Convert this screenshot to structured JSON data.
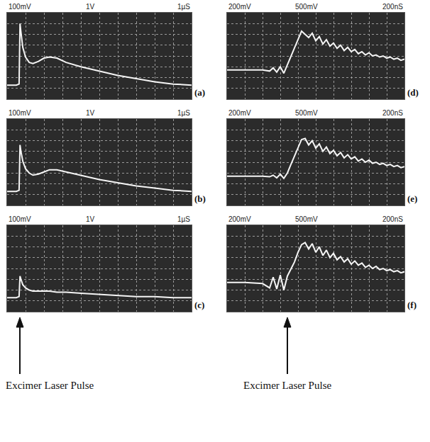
{
  "chart_data": [
    {
      "type": "line",
      "title": "(a)",
      "annotations": [
        "100mV",
        "1V",
        "1µS"
      ],
      "x": [
        0,
        0.5,
        0.65,
        0.7,
        0.75,
        0.85,
        1.0,
        1.2,
        1.4,
        1.7,
        2.0,
        2.3,
        2.7,
        3.2,
        4,
        5,
        6,
        7,
        8,
        9,
        10
      ],
      "values": [
        1.3,
        1.3,
        1.4,
        7.0,
        6.2,
        4.8,
        3.9,
        3.4,
        3.3,
        3.5,
        3.8,
        3.9,
        3.8,
        3.4,
        3.0,
        2.6,
        2.2,
        1.9,
        1.6,
        1.4,
        1.3
      ],
      "color": "#f5f5f5",
      "xlim": [
        0,
        10
      ],
      "ylim": [
        0,
        8
      ],
      "xticks": [
        0,
        1,
        2,
        3,
        4,
        5,
        6,
        7,
        8,
        9,
        10
      ],
      "yticks": [
        0,
        1,
        2,
        3,
        4,
        5,
        6,
        7,
        8
      ],
      "grid": true,
      "tick_labels": false
    },
    {
      "type": "line",
      "title": "(b)",
      "annotations": [
        "100mV",
        "1V",
        "1µS"
      ],
      "x": [
        0,
        0.5,
        0.65,
        0.7,
        0.75,
        0.85,
        1.0,
        1.2,
        1.4,
        1.7,
        2.0,
        2.3,
        2.7,
        3.2,
        4,
        5,
        6,
        7,
        8,
        9,
        10
      ],
      "values": [
        1.3,
        1.3,
        1.4,
        5.6,
        5.0,
        4.1,
        3.4,
        3.0,
        2.8,
        2.9,
        3.1,
        3.3,
        3.3,
        3.1,
        2.8,
        2.4,
        2.1,
        1.8,
        1.6,
        1.4,
        1.3
      ],
      "color": "#f5f5f5",
      "xlim": [
        0,
        10
      ],
      "ylim": [
        0,
        8
      ],
      "xticks": [
        0,
        1,
        2,
        3,
        4,
        5,
        6,
        7,
        8,
        9,
        10
      ],
      "yticks": [
        0,
        1,
        2,
        3,
        4,
        5,
        6,
        7,
        8
      ],
      "grid": true,
      "tick_labels": false
    },
    {
      "type": "line",
      "title": "(c)",
      "annotations": [
        "100mV",
        "1V",
        "1µS"
      ],
      "x": [
        0,
        0.5,
        0.65,
        0.7,
        0.75,
        0.85,
        1.0,
        1.2,
        1.4,
        1.7,
        2.0,
        2.3,
        2.7,
        3.2,
        4,
        5,
        6,
        7,
        8,
        9,
        10
      ],
      "values": [
        1.3,
        1.3,
        1.4,
        3.3,
        3.0,
        2.5,
        2.2,
        2.0,
        1.9,
        1.9,
        1.9,
        1.9,
        1.8,
        1.8,
        1.7,
        1.6,
        1.5,
        1.4,
        1.4,
        1.3,
        1.3
      ],
      "color": "#f5f5f5",
      "xlim": [
        0,
        10
      ],
      "ylim": [
        0,
        8
      ],
      "xticks": [
        0,
        1,
        2,
        3,
        4,
        5,
        6,
        7,
        8,
        9,
        10
      ],
      "yticks": [
        0,
        1,
        2,
        3,
        4,
        5,
        6,
        7,
        8
      ],
      "grid": true,
      "tick_labels": false
    },
    {
      "type": "line",
      "title": "(d)",
      "annotations": [
        "200mV",
        "500mV",
        "200nS"
      ],
      "x": [
        0,
        1,
        2,
        2.4,
        2.6,
        2.8,
        3.0,
        3.2,
        3.4,
        3.6,
        3.8,
        4.0,
        4.2,
        4.4,
        4.6,
        4.8,
        5.0,
        5.2,
        5.4,
        5.6,
        5.8,
        6.0,
        6.2,
        6.4,
        6.6,
        6.8,
        7.0,
        7.2,
        7.4,
        7.6,
        7.8,
        8.0,
        8.2,
        8.4,
        8.6,
        8.8,
        9.0,
        9.2,
        9.4,
        9.6,
        9.8,
        10.0
      ],
      "values": [
        2.7,
        2.7,
        2.7,
        2.6,
        2.9,
        2.5,
        3.0,
        2.4,
        3.2,
        4.0,
        4.8,
        5.6,
        6.3,
        6.0,
        5.7,
        6.1,
        5.4,
        5.8,
        5.1,
        5.5,
        4.9,
        5.2,
        4.7,
        5.0,
        4.5,
        4.8,
        4.4,
        4.6,
        4.2,
        4.4,
        4.1,
        4.3,
        4.0,
        4.1,
        3.9,
        4.0,
        3.8,
        3.9,
        3.7,
        3.8,
        3.6,
        3.7
      ],
      "color": "#f5f5f5",
      "xlim": [
        0,
        10
      ],
      "ylim": [
        0,
        8
      ],
      "xticks": [
        0,
        1,
        2,
        3,
        4,
        5,
        6,
        7,
        8,
        9,
        10
      ],
      "yticks": [
        0,
        1,
        2,
        3,
        4,
        5,
        6,
        7,
        8
      ],
      "grid": true,
      "tick_labels": false
    },
    {
      "type": "line",
      "title": "(e)",
      "annotations": [
        "200mV",
        "500mV",
        "200nS"
      ],
      "x": [
        0,
        1,
        2,
        2.4,
        2.6,
        2.8,
        3.0,
        3.2,
        3.4,
        3.6,
        3.8,
        4.0,
        4.2,
        4.4,
        4.6,
        4.8,
        5.0,
        5.2,
        5.4,
        5.6,
        5.8,
        6.0,
        6.2,
        6.4,
        6.6,
        6.8,
        7.0,
        7.2,
        7.4,
        7.6,
        7.8,
        8.0,
        8.2,
        8.4,
        8.6,
        8.8,
        9.0,
        9.2,
        9.4,
        9.6,
        9.8,
        10.0
      ],
      "values": [
        2.7,
        2.7,
        2.7,
        2.65,
        2.8,
        2.55,
        2.9,
        2.5,
        3.0,
        3.8,
        4.6,
        5.4,
        6.1,
        6.2,
        5.6,
        6.0,
        5.3,
        5.7,
        5.0,
        5.4,
        4.8,
        5.1,
        4.6,
        4.9,
        4.4,
        4.7,
        4.3,
        4.5,
        4.1,
        4.3,
        4.0,
        4.2,
        3.9,
        4.0,
        3.8,
        3.9,
        3.7,
        3.8,
        3.6,
        3.7,
        3.5,
        3.6
      ],
      "color": "#f5f5f5",
      "xlim": [
        0,
        10
      ],
      "ylim": [
        0,
        8
      ],
      "xticks": [
        0,
        1,
        2,
        3,
        4,
        5,
        6,
        7,
        8,
        9,
        10
      ],
      "yticks": [
        0,
        1,
        2,
        3,
        4,
        5,
        6,
        7,
        8
      ],
      "grid": true,
      "tick_labels": false
    },
    {
      "type": "line",
      "title": "(f)",
      "annotations": [
        "200mV",
        "500mV",
        "200nS"
      ],
      "x": [
        0,
        1,
        2,
        2.4,
        2.6,
        2.8,
        3.0,
        3.2,
        3.4,
        3.6,
        3.8,
        4.0,
        4.2,
        4.4,
        4.6,
        4.8,
        5.0,
        5.2,
        5.4,
        5.6,
        5.8,
        6.0,
        6.2,
        6.4,
        6.6,
        6.8,
        7.0,
        7.2,
        7.4,
        7.6,
        7.8,
        8.0,
        8.2,
        8.4,
        8.6,
        8.8,
        9.0,
        9.2,
        9.4,
        9.6,
        9.8,
        10.0
      ],
      "values": [
        2.7,
        2.7,
        2.6,
        2.2,
        3.2,
        2.1,
        3.4,
        2.0,
        3.3,
        3.9,
        4.6,
        5.5,
        6.2,
        6.4,
        5.8,
        6.3,
        5.5,
        6.0,
        5.2,
        5.7,
        5.0,
        5.4,
        4.8,
        5.1,
        4.6,
        4.9,
        4.4,
        4.7,
        4.3,
        4.5,
        4.1,
        4.3,
        4.0,
        4.2,
        3.9,
        4.0,
        3.8,
        3.9,
        3.7,
        3.8,
        3.6,
        3.7
      ],
      "color": "#f5f5f5",
      "xlim": [
        0,
        10
      ],
      "ylim": [
        0,
        8
      ],
      "xticks": [
        0,
        1,
        2,
        3,
        4,
        5,
        6,
        7,
        8,
        9,
        10
      ],
      "yticks": [
        0,
        1,
        2,
        3,
        4,
        5,
        6,
        7,
        8
      ],
      "grid": true,
      "tick_labels": false
    }
  ],
  "figure_labels": [
    "Excimer Laser Pulse",
    "Excimer Laser Pulse"
  ]
}
